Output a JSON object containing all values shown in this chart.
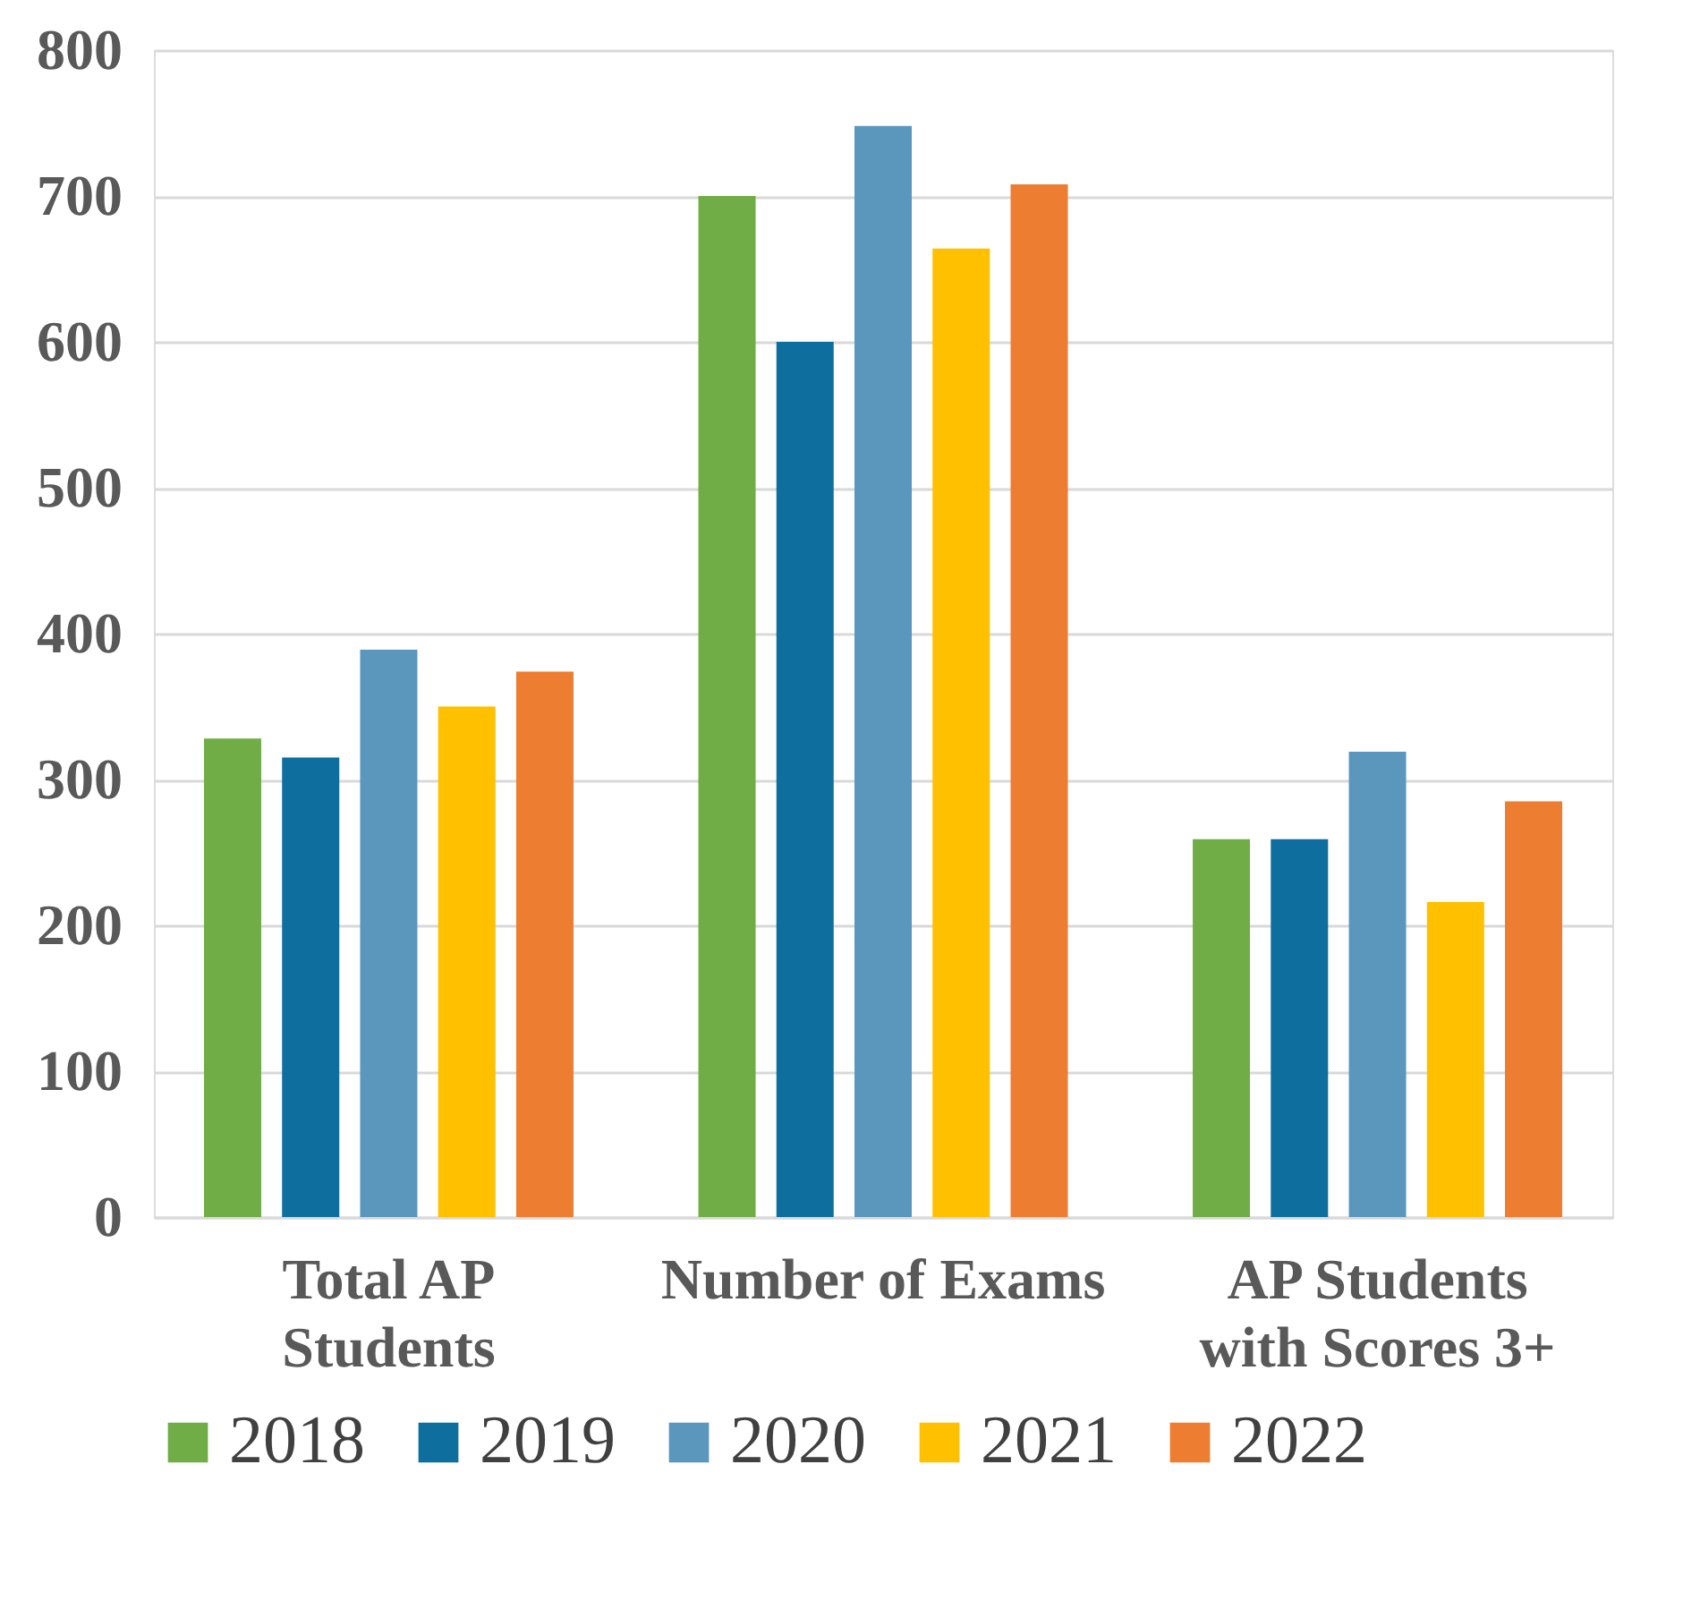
{
  "chart_data": {
    "type": "bar",
    "categories": [
      "Total AP Students",
      "Number of Exams",
      "AP Students with Scores 3+"
    ],
    "series": [
      {
        "name": "2018",
        "color": "#70ad47",
        "values": [
          328,
          700,
          259
        ]
      },
      {
        "name": "2019",
        "color": "#0e6f9e",
        "values": [
          315,
          600,
          259
        ]
      },
      {
        "name": "2020",
        "color": "#5b97bd",
        "values": [
          389,
          748,
          319
        ]
      },
      {
        "name": "2021",
        "color": "#ffc000",
        "values": [
          350,
          664,
          216
        ]
      },
      {
        "name": "2022",
        "color": "#ed7d31",
        "values": [
          374,
          708,
          285
        ]
      }
    ],
    "ylim": [
      0,
      800
    ],
    "yticks": [
      0,
      100,
      200,
      300,
      400,
      500,
      600,
      700,
      800
    ],
    "grid": "y",
    "legend": "bottom"
  }
}
